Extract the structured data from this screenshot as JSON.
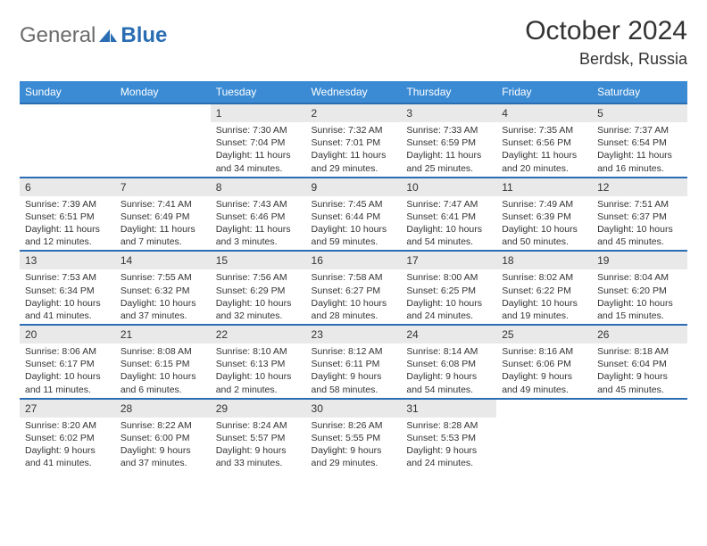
{
  "logo": {
    "general": "General",
    "blue": "Blue"
  },
  "title": "October 2024",
  "location": "Berdsk, Russia",
  "colors": {
    "header_bg": "#3b8bd4",
    "header_fg": "#ffffff",
    "band_bg": "#e9e9e9",
    "row_border": "#2a6db3",
    "text": "#333333",
    "logo_gray": "#6b6b6b",
    "logo_blue": "#2a6db3"
  },
  "day_names": [
    "Sunday",
    "Monday",
    "Tuesday",
    "Wednesday",
    "Thursday",
    "Friday",
    "Saturday"
  ],
  "weeks": [
    [
      {
        "empty": true
      },
      {
        "empty": true
      },
      {
        "n": "1",
        "sr": "7:30 AM",
        "ss": "7:04 PM",
        "dl": "11 hours and 34 minutes."
      },
      {
        "n": "2",
        "sr": "7:32 AM",
        "ss": "7:01 PM",
        "dl": "11 hours and 29 minutes."
      },
      {
        "n": "3",
        "sr": "7:33 AM",
        "ss": "6:59 PM",
        "dl": "11 hours and 25 minutes."
      },
      {
        "n": "4",
        "sr": "7:35 AM",
        "ss": "6:56 PM",
        "dl": "11 hours and 20 minutes."
      },
      {
        "n": "5",
        "sr": "7:37 AM",
        "ss": "6:54 PM",
        "dl": "11 hours and 16 minutes."
      }
    ],
    [
      {
        "n": "6",
        "sr": "7:39 AM",
        "ss": "6:51 PM",
        "dl": "11 hours and 12 minutes."
      },
      {
        "n": "7",
        "sr": "7:41 AM",
        "ss": "6:49 PM",
        "dl": "11 hours and 7 minutes."
      },
      {
        "n": "8",
        "sr": "7:43 AM",
        "ss": "6:46 PM",
        "dl": "11 hours and 3 minutes."
      },
      {
        "n": "9",
        "sr": "7:45 AM",
        "ss": "6:44 PM",
        "dl": "10 hours and 59 minutes."
      },
      {
        "n": "10",
        "sr": "7:47 AM",
        "ss": "6:41 PM",
        "dl": "10 hours and 54 minutes."
      },
      {
        "n": "11",
        "sr": "7:49 AM",
        "ss": "6:39 PM",
        "dl": "10 hours and 50 minutes."
      },
      {
        "n": "12",
        "sr": "7:51 AM",
        "ss": "6:37 PM",
        "dl": "10 hours and 45 minutes."
      }
    ],
    [
      {
        "n": "13",
        "sr": "7:53 AM",
        "ss": "6:34 PM",
        "dl": "10 hours and 41 minutes."
      },
      {
        "n": "14",
        "sr": "7:55 AM",
        "ss": "6:32 PM",
        "dl": "10 hours and 37 minutes."
      },
      {
        "n": "15",
        "sr": "7:56 AM",
        "ss": "6:29 PM",
        "dl": "10 hours and 32 minutes."
      },
      {
        "n": "16",
        "sr": "7:58 AM",
        "ss": "6:27 PM",
        "dl": "10 hours and 28 minutes."
      },
      {
        "n": "17",
        "sr": "8:00 AM",
        "ss": "6:25 PM",
        "dl": "10 hours and 24 minutes."
      },
      {
        "n": "18",
        "sr": "8:02 AM",
        "ss": "6:22 PM",
        "dl": "10 hours and 19 minutes."
      },
      {
        "n": "19",
        "sr": "8:04 AM",
        "ss": "6:20 PM",
        "dl": "10 hours and 15 minutes."
      }
    ],
    [
      {
        "n": "20",
        "sr": "8:06 AM",
        "ss": "6:17 PM",
        "dl": "10 hours and 11 minutes."
      },
      {
        "n": "21",
        "sr": "8:08 AM",
        "ss": "6:15 PM",
        "dl": "10 hours and 6 minutes."
      },
      {
        "n": "22",
        "sr": "8:10 AM",
        "ss": "6:13 PM",
        "dl": "10 hours and 2 minutes."
      },
      {
        "n": "23",
        "sr": "8:12 AM",
        "ss": "6:11 PM",
        "dl": "9 hours and 58 minutes."
      },
      {
        "n": "24",
        "sr": "8:14 AM",
        "ss": "6:08 PM",
        "dl": "9 hours and 54 minutes."
      },
      {
        "n": "25",
        "sr": "8:16 AM",
        "ss": "6:06 PM",
        "dl": "9 hours and 49 minutes."
      },
      {
        "n": "26",
        "sr": "8:18 AM",
        "ss": "6:04 PM",
        "dl": "9 hours and 45 minutes."
      }
    ],
    [
      {
        "n": "27",
        "sr": "8:20 AM",
        "ss": "6:02 PM",
        "dl": "9 hours and 41 minutes."
      },
      {
        "n": "28",
        "sr": "8:22 AM",
        "ss": "6:00 PM",
        "dl": "9 hours and 37 minutes."
      },
      {
        "n": "29",
        "sr": "8:24 AM",
        "ss": "5:57 PM",
        "dl": "9 hours and 33 minutes."
      },
      {
        "n": "30",
        "sr": "8:26 AM",
        "ss": "5:55 PM",
        "dl": "9 hours and 29 minutes."
      },
      {
        "n": "31",
        "sr": "8:28 AM",
        "ss": "5:53 PM",
        "dl": "9 hours and 24 minutes."
      },
      {
        "empty": true
      },
      {
        "empty": true
      }
    ]
  ],
  "labels": {
    "sunrise": "Sunrise: ",
    "sunset": "Sunset: ",
    "daylight": "Daylight: "
  }
}
